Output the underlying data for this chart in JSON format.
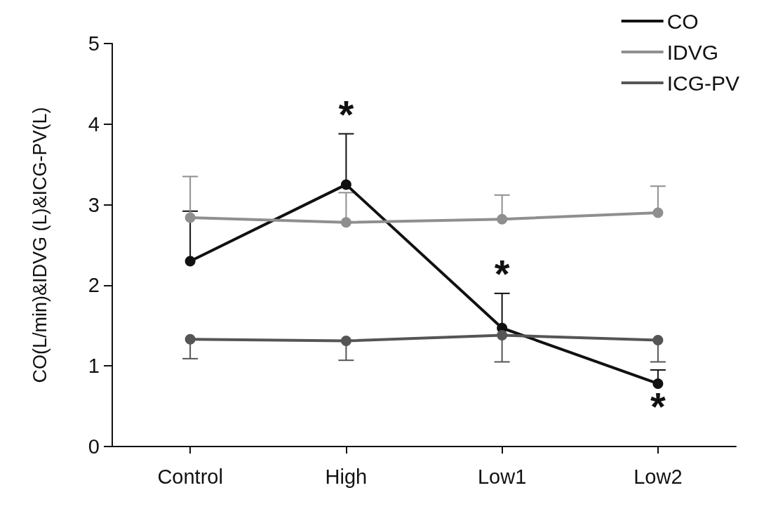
{
  "chart_data": {
    "type": "line",
    "ylabel": "CO(L/min)&IDVG (L)&ICG-PV(L)",
    "categories": [
      "Control",
      "High",
      "Low1",
      "Low2"
    ],
    "series": [
      {
        "name": "CO",
        "color": "#111111",
        "values": [
          2.3,
          3.25,
          1.47,
          0.78
        ],
        "errors": [
          [
            2.3,
            2.92
          ],
          [
            3.25,
            3.88
          ],
          [
            1.47,
            1.9
          ],
          [
            0.78,
            0.95
          ]
        ]
      },
      {
        "name": "IDVG",
        "color": "#8f8f8f",
        "values": [
          2.84,
          2.78,
          2.82,
          2.9
        ],
        "errors": [
          [
            2.84,
            3.35
          ],
          [
            2.78,
            3.15
          ],
          [
            2.82,
            3.12
          ],
          [
            2.9,
            3.23
          ]
        ]
      },
      {
        "name": "ICG-PV",
        "color": "#555555",
        "values": [
          1.33,
          1.31,
          1.38,
          1.32
        ],
        "errors": [
          [
            1.09,
            1.33
          ],
          [
            1.07,
            1.31
          ],
          [
            1.05,
            1.38
          ],
          [
            1.05,
            1.32
          ]
        ]
      }
    ],
    "annotations": [
      {
        "text": "*",
        "x": "High",
        "y": 3.88
      },
      {
        "text": "*",
        "x": "Low1",
        "y": 1.9
      },
      {
        "text": "*",
        "x": "Low2",
        "y": 0.78
      }
    ],
    "ylim": [
      0,
      5
    ],
    "yticks": [
      0,
      1,
      2,
      3,
      4,
      5
    ],
    "grid": false,
    "legend": "top right",
    "marker": "circle",
    "line_style": "solid"
  }
}
